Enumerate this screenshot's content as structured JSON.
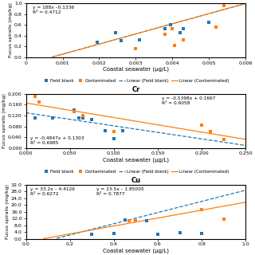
{
  "chart_data": [
    {
      "type": "scatter",
      "x_label": "Coastal seawater (μg/L)",
      "y_label": "Fucus spiralis (mg/kg)",
      "xlim": [
        0,
        0.006
      ],
      "ylim": [
        0.0,
        1.0
      ],
      "xticks": [
        0,
        0.001,
        0.002,
        0.003,
        0.004,
        0.005,
        0.006
      ],
      "yticks": [
        {
          "value": 0.0,
          "label": "0.0"
        },
        {
          "value": 0.2,
          "label": "0.2"
        },
        {
          "value": 0.4,
          "label": "0.4"
        },
        {
          "value": 0.6,
          "label": "0.6"
        },
        {
          "value": 0.8,
          "label": "0.8"
        },
        {
          "value": 1.0,
          "label": "1.0"
        }
      ],
      "series": [
        {
          "name": "Field blank",
          "type": "scatter",
          "marker": "square",
          "x": [
            0.00195,
            0.00245,
            0.0026,
            0.0031,
            0.0038,
            0.00395,
            0.0042,
            0.0043,
            0.005
          ],
          "values": [
            0.27,
            0.45,
            0.31,
            0.32,
            0.52,
            0.6,
            0.46,
            0.52,
            0.64
          ]
        },
        {
          "name": "Contaminated",
          "type": "scatter",
          "marker": "square",
          "x": [
            0.003,
            0.0038,
            0.004,
            0.00405,
            0.0043,
            0.0052,
            0.0054
          ],
          "values": [
            0.16,
            0.43,
            0.52,
            0.22,
            0.32,
            0.56,
            0.96
          ]
        },
        {
          "name": "Linear (Field blank)",
          "type": "line",
          "line_style": "dashed",
          "x": [
            0.00072,
            0.006
          ],
          "values": [
            0.00176,
            0.9944
          ]
        },
        {
          "name": "Linear (Contaminated)",
          "type": "line",
          "line_style": "solid",
          "x": [
            0.00072,
            0.006
          ],
          "values": [
            0.00176,
            0.9944
          ]
        }
      ],
      "annotations": [
        "y = 188x –0.1336\nR² = 0.4712"
      ],
      "legend": "upper center"
    },
    {
      "type": "scatter",
      "title": "Cr",
      "x_label": "Coastal seawater (μg/L)",
      "y_label": "Fucus spiralis (mg/kg)",
      "xlim": [
        0.0,
        0.25
      ],
      "ylim": [
        0.0,
        0.2
      ],
      "xticks": [
        {
          "value": 0.0,
          "label": "0.000"
        },
        {
          "value": 0.05,
          "label": "0.050"
        },
        {
          "value": 0.1,
          "label": "0.100"
        },
        {
          "value": 0.15,
          "label": "0.150"
        },
        {
          "value": 0.2,
          "label": "0.200"
        },
        {
          "value": 0.25,
          "label": "0.250"
        }
      ],
      "yticks": [
        {
          "value": 0.0,
          "label": "0.000"
        },
        {
          "value": 0.04,
          "label": "0.040"
        },
        {
          "value": 0.08,
          "label": "0.080"
        },
        {
          "value": 0.12,
          "label": "0.120"
        },
        {
          "value": 0.16,
          "label": "0.160"
        },
        {
          "value": 0.2,
          "label": "0.200"
        }
      ],
      "series": [
        {
          "name": "Field blank",
          "type": "scatter",
          "marker": "square",
          "x": [
            0.01,
            0.03,
            0.055,
            0.06,
            0.065,
            0.075,
            0.09,
            0.1,
            0.11
          ],
          "values": [
            0.11,
            0.11,
            0.14,
            0.11,
            0.11,
            0.105,
            0.065,
            0.035,
            0.065
          ]
        },
        {
          "name": "Contaminated",
          "type": "scatter",
          "marker": "square",
          "x": [
            0.01,
            0.015,
            0.055,
            0.065,
            0.1,
            0.2,
            0.21,
            0.225
          ],
          "values": [
            0.19,
            0.17,
            0.135,
            0.12,
            0.06,
            0.085,
            0.06,
            0.03
          ]
        },
        {
          "name": "Linear (Field blank)",
          "type": "line",
          "line_style": "dashed",
          "x": [
            0.0,
            0.25
          ],
          "values": [
            0.1303,
            0.009125
          ]
        },
        {
          "name": "Linear (Contaminated)",
          "type": "line",
          "line_style": "solid",
          "x": [
            0.0,
            0.25
          ],
          "values": [
            0.1667,
            0.03175
          ]
        }
      ],
      "annotations": [
        "y = -0.4847x + 0.1303\nR² = 0.6985",
        "y = -0.5398x + 0.1667\nR² = 0.6058"
      ],
      "legend": "upper center"
    },
    {
      "type": "scatter",
      "title": "Cu",
      "x_label": "Coastal seawater (μg/L)",
      "y_label": "Fucus spiralis (mg/kg)",
      "xlim": [
        0.0,
        1.0
      ],
      "ylim": [
        0.0,
        32.0
      ],
      "xticks": [
        {
          "value": 0.0,
          "label": "0.0"
        },
        {
          "value": 0.2,
          "label": "0.2"
        },
        {
          "value": 0.4,
          "label": "0.4"
        },
        {
          "value": 0.6,
          "label": "0.6"
        },
        {
          "value": 0.8,
          "label": "0.8"
        },
        {
          "value": 1.0,
          "label": "1.0"
        }
      ],
      "yticks": [
        {
          "value": 0.0,
          "label": "0.0"
        },
        {
          "value": 4.0,
          "label": "4.0"
        },
        {
          "value": 8.0,
          "label": "8.0"
        },
        {
          "value": 12.0,
          "label": "12.0"
        },
        {
          "value": 16.0,
          "label": "16.0"
        },
        {
          "value": 20.0,
          "label": "20.0"
        },
        {
          "value": 24.0,
          "label": "24.0"
        },
        {
          "value": 28.0,
          "label": "28.0"
        },
        {
          "value": 32.0,
          "label": "32.0"
        }
      ],
      "series": [
        {
          "type": "scatter",
          "marker": "square",
          "x": [
            0.3,
            0.4,
            0.45,
            0.55,
            0.6,
            0.7,
            0.8
          ],
          "values": [
            2.8,
            3.0,
            11.0,
            10.8,
            2.5,
            3.5,
            3.2
          ]
        },
        {
          "type": "scatter",
          "marker": "square",
          "x": [
            0.47,
            0.5,
            0.8,
            0.9
          ],
          "values": [
            10.8,
            10.8,
            17.2,
            11.5
          ]
        },
        {
          "type": "line",
          "line_style": "dashed",
          "x": [
            0.14,
            1.0
          ],
          "values": [
            0.2354,
            28.7874
          ]
        },
        {
          "type": "line",
          "line_style": "solid",
          "x": [
            0.08,
            1.0
          ],
          "values": [
            0.02995,
            21.64995
          ]
        }
      ],
      "annotations": [
        "y = 33.2x – 4.4126\nR² = 0.6272",
        "y = 23.5x – 1.85005\nR² = 0.7877"
      ]
    }
  ]
}
